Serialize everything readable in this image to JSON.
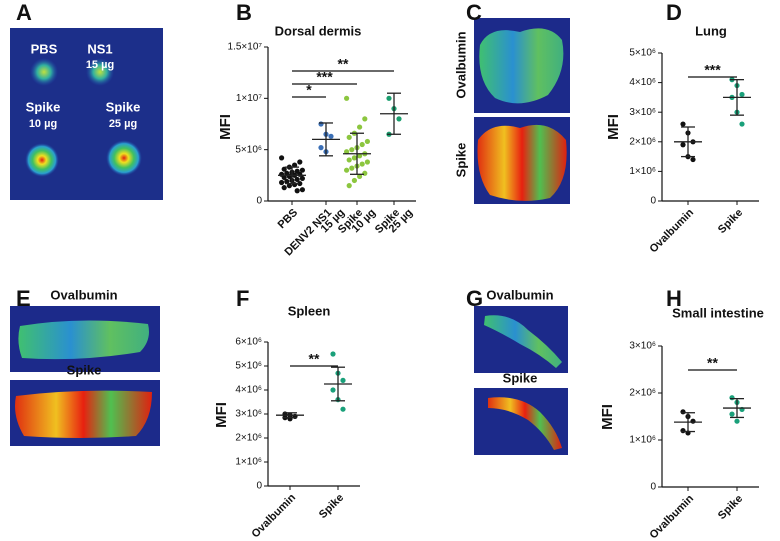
{
  "panels": [
    "A",
    "B",
    "C",
    "D",
    "E",
    "F",
    "G",
    "H"
  ],
  "image_panels": [
    {
      "labels": [
        "PBS",
        "NS1",
        "15 µg",
        "Spike",
        "10 µg",
        "Spike",
        "25 µg"
      ]
    },
    {
      "labels": [
        "Ovalbumin",
        "Spike"
      ]
    },
    {
      "labels": [
        "Ovalbumin",
        "Spike"
      ]
    },
    {
      "labels": [
        "Ovalbumin",
        "Spike"
      ]
    }
  ],
  "chart_data": [
    {
      "type": "dotplot",
      "title": "Dorsal dermis",
      "ylabel": "MFI",
      "ylim": [
        0,
        15000000
      ],
      "yticks": [
        0,
        {
          "value": 5000000,
          "label": "5×10⁶"
        },
        {
          "value": 10000000,
          "label": "1×10⁷"
        },
        {
          "value": 15000000,
          "label": "1.5×10⁷"
        }
      ],
      "groups": [
        {
          "name": [
            "PBS"
          ],
          "color": "#111111",
          "values": [
            4200000,
            3800000,
            3500000,
            3300000,
            3100000,
            3000000,
            2900000,
            2800000,
            2700000,
            2600000,
            2600000,
            2500000,
            2400000,
            2300000,
            2200000,
            2100000,
            2000000,
            1900000,
            1800000,
            1700000,
            1600000,
            1500000,
            1300000,
            1100000,
            1000000
          ],
          "mean": 2500000,
          "sd": 800000
        },
        {
          "name": [
            "DENV2 NS1",
            "15 µg"
          ],
          "color": "#3b6fb6",
          "values": [
            7500000,
            6500000,
            6300000,
            5200000,
            4800000
          ],
          "mean": 6000000,
          "sd": 1600000
        },
        {
          "name": [
            "Spike",
            "10 µg"
          ],
          "color": "#8cc63f",
          "values": [
            10000000,
            8000000,
            7200000,
            6600000,
            6200000,
            5800000,
            5500000,
            5200000,
            5000000,
            4800000,
            4600000,
            4400000,
            4200000,
            4000000,
            3800000,
            3600000,
            3400000,
            3200000,
            3000000,
            2700000,
            2400000,
            2000000,
            1500000
          ],
          "mean": 4600000,
          "sd": 2000000
        },
        {
          "name": [
            "Spike",
            "25 µg"
          ],
          "color": "#1a9e6e",
          "values": [
            10000000,
            9000000,
            8000000,
            6500000
          ],
          "mean": 8500000,
          "sd": 2000000
        }
      ],
      "significance": [
        {
          "groups": [
            0,
            1
          ],
          "label": "*"
        },
        {
          "groups": [
            0,
            2
          ],
          "label": "***"
        },
        {
          "groups": [
            0,
            3
          ],
          "label": "**"
        }
      ]
    },
    {
      "type": "dotplot",
      "title": "Lung",
      "ylabel": "MFI",
      "ylim": [
        0,
        5000000
      ],
      "yticks": [
        0,
        {
          "value": 1000000,
          "label": "1×10⁶"
        },
        {
          "value": 2000000,
          "label": "2×10⁶"
        },
        {
          "value": 3000000,
          "label": "3×10⁶"
        },
        {
          "value": 4000000,
          "label": "4×10⁶"
        },
        {
          "value": 5000000,
          "label": "5×10⁶"
        }
      ],
      "groups": [
        {
          "name": [
            "Ovalbumin"
          ],
          "color": "#111111",
          "values": [
            2600000,
            2300000,
            2000000,
            1900000,
            1500000,
            1400000
          ],
          "mean": 2000000,
          "sd": 500000
        },
        {
          "name": [
            "Spike"
          ],
          "color": "#1aa07a",
          "values": [
            4100000,
            3900000,
            3600000,
            3500000,
            3000000,
            2600000
          ],
          "mean": 3500000,
          "sd": 600000
        }
      ],
      "significance": [
        {
          "groups": [
            0,
            1
          ],
          "label": "***"
        }
      ]
    },
    {
      "type": "dotplot",
      "title": "Spleen",
      "ylabel": "MFI",
      "ylim": [
        0,
        6000000
      ],
      "yticks": [
        0,
        {
          "value": 1000000,
          "label": "1×10⁶"
        },
        {
          "value": 2000000,
          "label": "2×10⁶"
        },
        {
          "value": 3000000,
          "label": "3×10⁶"
        },
        {
          "value": 4000000,
          "label": "4×10⁶"
        },
        {
          "value": 5000000,
          "label": "5×10⁶"
        },
        {
          "value": 6000000,
          "label": "6×10⁶"
        }
      ],
      "groups": [
        {
          "name": [
            "Ovalbumin"
          ],
          "color": "#111111",
          "values": [
            3000000,
            2950000,
            2900000,
            2850000,
            2800000
          ],
          "mean": 2950000,
          "sd": 100000
        },
        {
          "name": [
            "Spike"
          ],
          "color": "#1aa07a",
          "values": [
            5500000,
            4700000,
            4400000,
            4000000,
            3600000,
            3200000
          ],
          "mean": 4250000,
          "sd": 700000
        }
      ],
      "significance": [
        {
          "groups": [
            0,
            1
          ],
          "label": "**"
        }
      ]
    },
    {
      "type": "dotplot",
      "title": "Small intestine",
      "ylabel": "MFI",
      "ylim": [
        0,
        3000000
      ],
      "yticks": [
        0,
        {
          "value": 1000000,
          "label": "1×10⁶"
        },
        {
          "value": 2000000,
          "label": "2×10⁶"
        },
        {
          "value": 3000000,
          "label": "3×10⁶"
        }
      ],
      "groups": [
        {
          "name": [
            "Ovalbumin"
          ],
          "color": "#111111",
          "values": [
            1600000,
            1500000,
            1400000,
            1200000,
            1150000
          ],
          "mean": 1380000,
          "sd": 200000
        },
        {
          "name": [
            "Spike"
          ],
          "color": "#1aa07a",
          "values": [
            1900000,
            1800000,
            1650000,
            1550000,
            1400000
          ],
          "mean": 1680000,
          "sd": 200000
        }
      ],
      "significance": [
        {
          "groups": [
            0,
            1
          ],
          "label": "**"
        }
      ]
    }
  ]
}
